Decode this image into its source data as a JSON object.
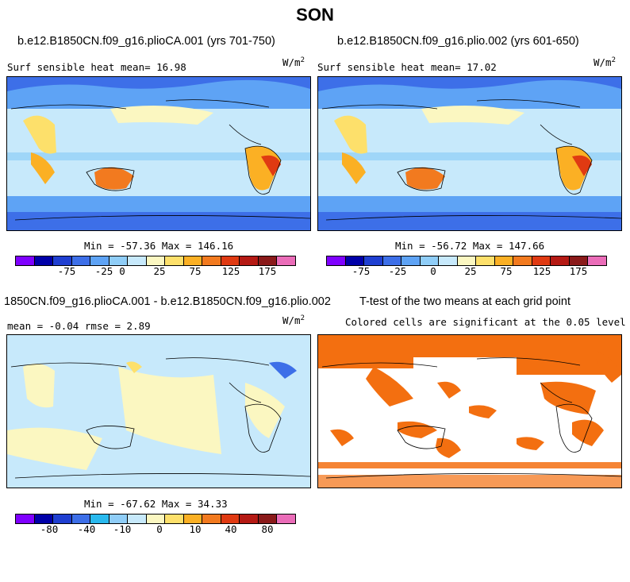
{
  "title": "SON",
  "panels": {
    "p1": {
      "title": "b.e12.B1850CN.f09_g16.plioCA.001 (yrs 701-750)",
      "subtitle": "Surf sensible heat   mean=  16.98",
      "unit": "W/m",
      "unit_exp": "2",
      "minmax": "Min = -57.36 Max = 146.16",
      "cbar_labels": [
        "-75",
        "-25",
        "0",
        "25",
        "75",
        "125",
        "175"
      ]
    },
    "p2": {
      "title": "b.e12.B1850CN.f09_g16.plio.002 (yrs 601-650)",
      "subtitle": "Surf sensible heat   mean=  17.02",
      "unit": "W/m",
      "unit_exp": "2",
      "minmax": "Min = -56.72 Max = 147.66",
      "cbar_labels": [
        "-75",
        "-25",
        "0",
        "25",
        "75",
        "125",
        "175"
      ]
    },
    "p3": {
      "title": "1850CN.f09_g16.plioCA.001 - b.e12.B1850CN.f09_g16.plio.002",
      "subtitle": "mean =  -0.04    rmse =    2.89",
      "unit": "W/m",
      "unit_exp": "2",
      "minmax": "Min = -67.62 Max = 34.33",
      "cbar_labels": [
        "-80",
        "-40",
        "-10",
        "0",
        "10",
        "40",
        "80"
      ]
    },
    "p4": {
      "title": "T-test of the two means at each grid point",
      "subtitle": "Colored cells are significant at the 0.05 level"
    }
  },
  "colors": {
    "cbar": [
      "#7f00ff",
      "#0000a8",
      "#1f3fd1",
      "#3d6fe8",
      "#5ea3f5",
      "#8fcdf7",
      "#c7e9fb",
      "#fbf7c1",
      "#fde06b",
      "#fbb024",
      "#f27a1f",
      "#e03a12",
      "#b51a14",
      "#8a1a1a",
      "#ea6cb8"
    ],
    "cbar_diff": [
      "#7f00ff",
      "#0000a8",
      "#1f3fd1",
      "#3d6fe8",
      "#29b9ee",
      "#8fcdf7",
      "#c7e9fb",
      "#fbf7c1",
      "#fde06b",
      "#fbb024",
      "#f27a1f",
      "#e03a12",
      "#b51a14",
      "#8a1a1a",
      "#ea6cb8"
    ],
    "significant": "#f36f10"
  }
}
